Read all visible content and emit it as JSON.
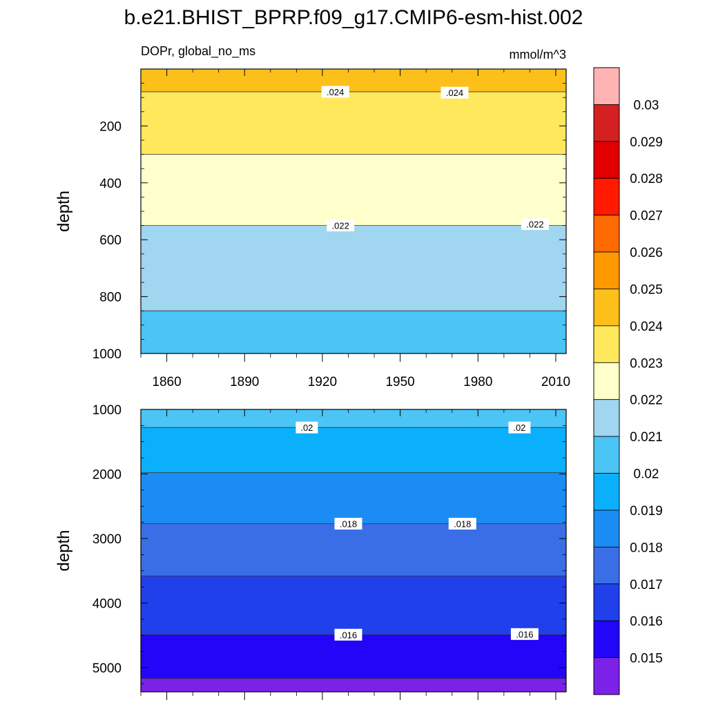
{
  "chart_data": {
    "type": "heatmap",
    "title": "b.e21.BHIST_BPRP.f09_g17.CMIP6-esm-hist.002",
    "variable_label": "DOPr, global_no_ms",
    "units": "mmol/m^3",
    "x_range": [
      1850,
      2014
    ],
    "xticks": [
      1860,
      1890,
      1920,
      1950,
      1980,
      2010
    ],
    "xtick_labels": [
      "1860",
      "1890",
      "1920",
      "1950",
      "1980",
      "2010"
    ],
    "panels": [
      {
        "name": "upper",
        "ylabel": "depth",
        "y_range": [
          0,
          1000
        ],
        "visible_top_depth": 0,
        "yticks": [
          200,
          400,
          600,
          800,
          1000
        ],
        "ytick_labels": [
          "200",
          "400",
          "600",
          "800",
          "1000"
        ],
        "bands": [
          {
            "top": 0,
            "bottom": 80,
            "color": "#fdc01a"
          },
          {
            "top": 80,
            "bottom": 300,
            "color": "#ffe85b"
          },
          {
            "top": 300,
            "bottom": 550,
            "color": "#ffffcc"
          },
          {
            "top": 550,
            "bottom": 850,
            "color": "#a0d6f0"
          },
          {
            "top": 850,
            "bottom": 1000,
            "color": "#4bc4f6"
          }
        ],
        "contour_labels": [
          {
            "text": ".024",
            "year": 1925,
            "depth": 80
          },
          {
            "text": ".024",
            "year": 1971,
            "depth": 83
          },
          {
            "text": ".022",
            "year": 1927,
            "depth": 550
          },
          {
            "text": ".022",
            "year": 2002,
            "depth": 545
          }
        ]
      },
      {
        "name": "lower",
        "ylabel": "depth",
        "y_range": [
          1000,
          5375
        ],
        "yticks": [
          1000,
          2000,
          3000,
          4000,
          5000
        ],
        "ytick_labels": [
          "1000",
          "2000",
          "3000",
          "4000",
          "5000"
        ],
        "bands": [
          {
            "top": 1000,
            "bottom": 1280,
            "color": "#4bc4f6"
          },
          {
            "top": 1280,
            "bottom": 1980,
            "color": "#0ab0fc"
          },
          {
            "top": 1980,
            "bottom": 2770,
            "color": "#1b8cf4"
          },
          {
            "top": 2770,
            "bottom": 3580,
            "color": "#3a6ee6"
          },
          {
            "top": 3580,
            "bottom": 4490,
            "color": "#2040ec"
          },
          {
            "top": 4490,
            "bottom": 5170,
            "color": "#2305f8"
          },
          {
            "top": 5170,
            "bottom": 5375,
            "color": "#7c22e8"
          }
        ],
        "contour_labels": [
          {
            "text": ".02",
            "year": 1914,
            "depth": 1280
          },
          {
            "text": ".02",
            "year": 1996,
            "depth": 1280
          },
          {
            "text": ".018",
            "year": 1930,
            "depth": 2770
          },
          {
            "text": ".018",
            "year": 1974,
            "depth": 2770
          },
          {
            "text": ".016",
            "year": 1930,
            "depth": 4490
          },
          {
            "text": ".016",
            "year": 1998,
            "depth": 4480
          }
        ]
      }
    ],
    "colorbar": {
      "levels": [
        "0.03",
        "0.029",
        "0.028",
        "0.027",
        "0.026",
        "0.025",
        "0.024",
        "0.023",
        "0.022",
        "0.021",
        "0.02",
        "0.019",
        "0.018",
        "0.017",
        "0.016",
        "0.015"
      ],
      "colors_top_to_bottom": [
        "#ffb3b3",
        "#d42020",
        "#e20000",
        "#ff1a00",
        "#ff6a00",
        "#ff9900",
        "#fdc01a",
        "#ffe85b",
        "#ffffcc",
        "#a0d6f0",
        "#4bc4f6",
        "#0ab0fc",
        "#1b8cf4",
        "#3a6ee6",
        "#2040ec",
        "#2305f8",
        "#7c22e8"
      ]
    }
  }
}
